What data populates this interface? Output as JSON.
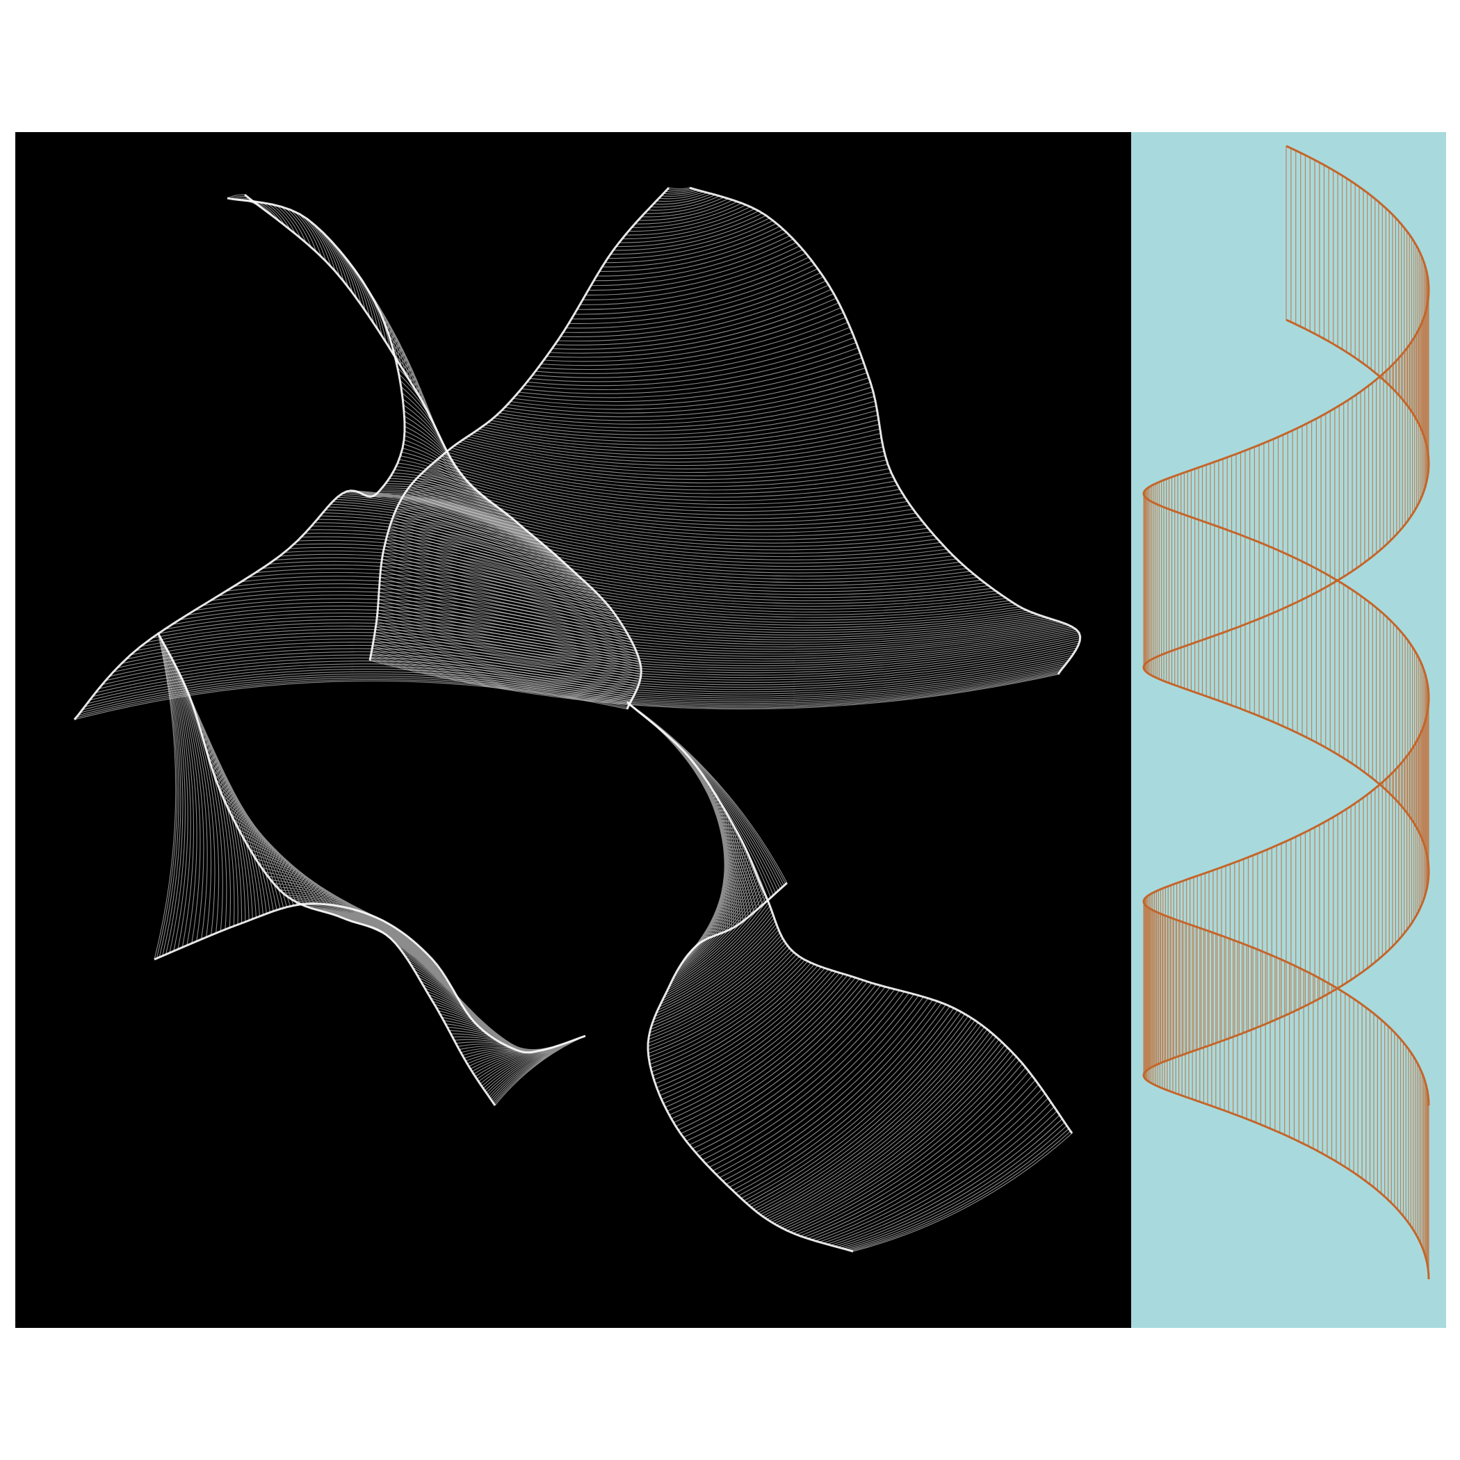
{
  "artwork": {
    "left_panel": {
      "name": "string-art-ribbons",
      "background": "#000000",
      "stroke_color": "#ffffff",
      "ribbons": 4
    },
    "right_panel": {
      "name": "helix-ribbon",
      "background": "#a8dadd",
      "stroke_color": "#c4652a"
    }
  }
}
